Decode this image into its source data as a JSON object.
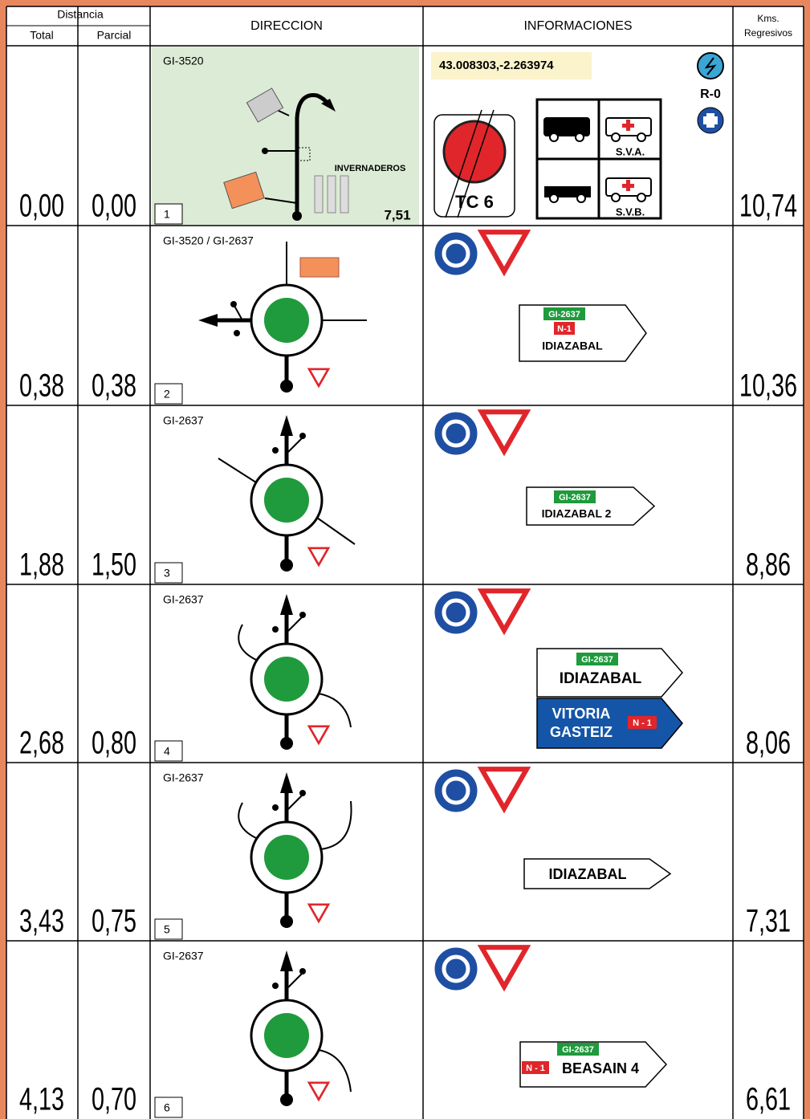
{
  "header": {
    "distancia": "Distancia",
    "total": "Total",
    "parcial": "Parcial",
    "direccion": "DIRECCION",
    "informaciones": "INFORMACIONES",
    "kms": [
      "Kms.",
      "Regresivos"
    ]
  },
  "rows": [
    {
      "number": "1",
      "total": "0,00",
      "parcial": "0,00",
      "road": "GI-3520",
      "kms": "10,74",
      "distance_label": "7,51",
      "place": "INVERNADEROS",
      "coordinates": "43.008303,-2.263974",
      "road_code": "R-0",
      "stage": "TC 6",
      "services": [
        "S.V.A.",
        "S.V.B."
      ]
    },
    {
      "number": "2",
      "total": "0,38",
      "parcial": "0,38",
      "road": "GI-3520 / GI-2637",
      "kms": "10,36",
      "signs": [
        {
          "road": "GI-2637",
          "national": "N-1",
          "lines": [
            "IDIAZABAL"
          ]
        }
      ]
    },
    {
      "number": "3",
      "total": "1,88",
      "parcial": "1,50",
      "road": "GI-2637",
      "kms": "8,86",
      "signs": [
        {
          "road": "GI-2637",
          "lines": [
            "IDIAZABAL   2"
          ]
        }
      ]
    },
    {
      "number": "4",
      "total": "2,68",
      "parcial": "0,80",
      "road": "GI-2637",
      "kms": "8,06",
      "signs": [
        {
          "road": "GI-2637",
          "lines": [
            "IDIAZABAL"
          ]
        },
        {
          "national": "N - 1",
          "lines": [
            "VITORIA",
            "GASTEIZ"
          ]
        }
      ]
    },
    {
      "number": "5",
      "total": "3,43",
      "parcial": "0,75",
      "road": "GI-2637",
      "kms": "7,31",
      "signs": [
        {
          "lines": [
            "IDIAZABAL"
          ]
        }
      ]
    },
    {
      "number": "6",
      "total": "4,13",
      "parcial": "0,70",
      "road": "GI-2637",
      "kms": "6,61",
      "signs": [
        {
          "road": "GI-2637",
          "national": "N - 1",
          "lines": [
            "BEASAIN 4"
          ]
        }
      ]
    }
  ]
}
